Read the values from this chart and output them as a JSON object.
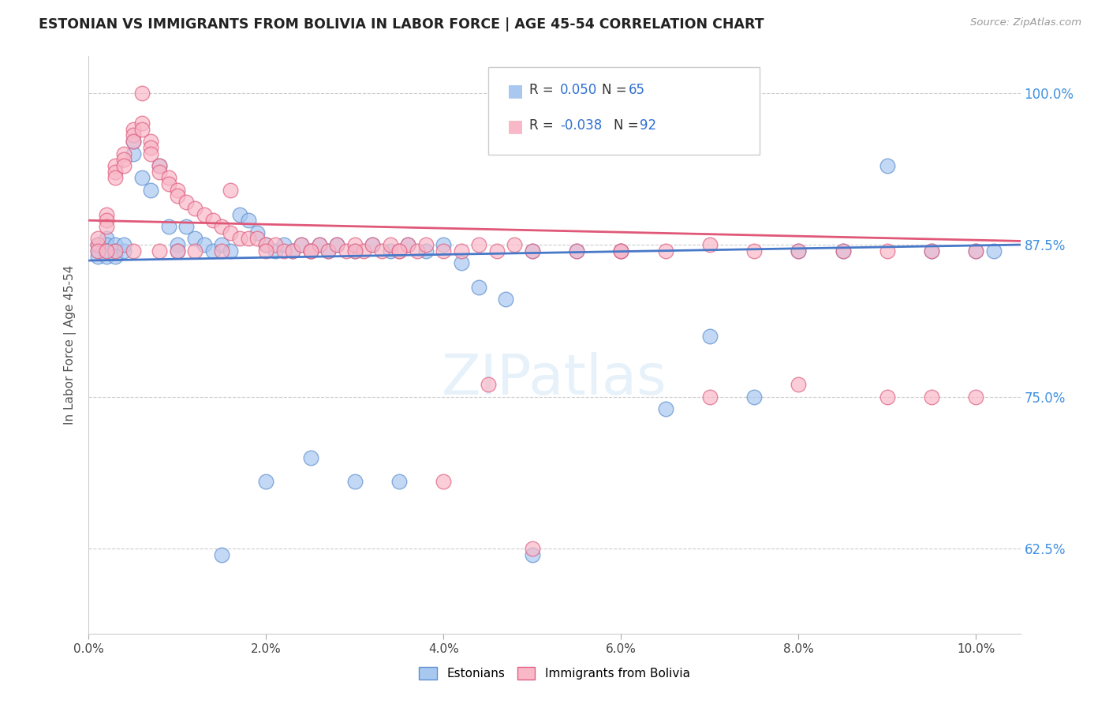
{
  "title": "ESTONIAN VS IMMIGRANTS FROM BOLIVIA IN LABOR FORCE | AGE 45-54 CORRELATION CHART",
  "source": "Source: ZipAtlas.com",
  "ylabel": "In Labor Force | Age 45-54",
  "xlim": [
    0.0,
    0.105
  ],
  "ylim": [
    0.555,
    1.03
  ],
  "yticks": [
    0.625,
    0.75,
    0.875,
    1.0
  ],
  "ytick_labels": [
    "62.5%",
    "75.0%",
    "87.5%",
    "100.0%"
  ],
  "xticks": [
    0.0,
    0.02,
    0.04,
    0.06,
    0.08,
    0.1
  ],
  "xtick_labels": [
    "0.0%",
    "2.0%",
    "4.0%",
    "6.0%",
    "8.0%",
    "10.0%"
  ],
  "color_estonian_fill": "#A8C8F0",
  "color_estonian_edge": "#6090D0",
  "color_bolivia_fill": "#F8B8C8",
  "color_bolivia_edge": "#E06080",
  "color_line_estonian": "#4878C8",
  "color_line_bolivia": "#E05878",
  "color_right_axis": "#4090E0",
  "legend_blue": "#3070D0",
  "estonian_x": [
    0.001,
    0.001,
    0.001,
    0.002,
    0.002,
    0.002,
    0.002,
    0.003,
    0.003,
    0.003,
    0.004,
    0.004,
    0.005,
    0.005,
    0.006,
    0.007,
    0.008,
    0.009,
    0.01,
    0.01,
    0.011,
    0.012,
    0.013,
    0.014,
    0.015,
    0.016,
    0.017,
    0.018,
    0.019,
    0.02,
    0.021,
    0.022,
    0.023,
    0.024,
    0.025,
    0.026,
    0.027,
    0.028,
    0.03,
    0.032,
    0.034,
    0.036,
    0.038,
    0.04,
    0.042,
    0.044,
    0.047,
    0.05,
    0.055,
    0.06,
    0.065,
    0.07,
    0.075,
    0.08,
    0.085,
    0.09,
    0.095,
    0.1,
    0.102,
    0.05,
    0.03,
    0.035,
    0.02,
    0.025,
    0.015
  ],
  "estonian_y": [
    0.875,
    0.87,
    0.865,
    0.88,
    0.875,
    0.87,
    0.865,
    0.875,
    0.87,
    0.865,
    0.87,
    0.875,
    0.95,
    0.96,
    0.93,
    0.92,
    0.94,
    0.89,
    0.875,
    0.87,
    0.89,
    0.88,
    0.875,
    0.87,
    0.875,
    0.87,
    0.9,
    0.895,
    0.885,
    0.875,
    0.87,
    0.875,
    0.87,
    0.875,
    0.87,
    0.875,
    0.87,
    0.875,
    0.87,
    0.875,
    0.87,
    0.875,
    0.87,
    0.875,
    0.86,
    0.84,
    0.83,
    0.87,
    0.87,
    0.87,
    0.74,
    0.8,
    0.75,
    0.87,
    0.87,
    0.94,
    0.87,
    0.87,
    0.87,
    0.62,
    0.68,
    0.68,
    0.68,
    0.7,
    0.62
  ],
  "bolivia_x": [
    0.001,
    0.001,
    0.001,
    0.002,
    0.002,
    0.002,
    0.003,
    0.003,
    0.003,
    0.004,
    0.004,
    0.004,
    0.005,
    0.005,
    0.005,
    0.006,
    0.006,
    0.006,
    0.007,
    0.007,
    0.007,
    0.008,
    0.008,
    0.009,
    0.009,
    0.01,
    0.01,
    0.011,
    0.012,
    0.013,
    0.014,
    0.015,
    0.016,
    0.017,
    0.018,
    0.019,
    0.02,
    0.021,
    0.022,
    0.023,
    0.024,
    0.025,
    0.026,
    0.027,
    0.028,
    0.029,
    0.03,
    0.031,
    0.032,
    0.033,
    0.034,
    0.035,
    0.036,
    0.037,
    0.038,
    0.04,
    0.042,
    0.044,
    0.046,
    0.048,
    0.05,
    0.055,
    0.06,
    0.065,
    0.07,
    0.075,
    0.08,
    0.085,
    0.09,
    0.095,
    0.1,
    0.04,
    0.045,
    0.05,
    0.06,
    0.07,
    0.08,
    0.09,
    0.095,
    0.1,
    0.03,
    0.035,
    0.025,
    0.02,
    0.015,
    0.01,
    0.005,
    0.003,
    0.002,
    0.008,
    0.012,
    0.016
  ],
  "bolivia_y": [
    0.875,
    0.88,
    0.87,
    0.9,
    0.895,
    0.89,
    0.94,
    0.935,
    0.93,
    0.95,
    0.945,
    0.94,
    0.97,
    0.965,
    0.96,
    1.0,
    0.975,
    0.97,
    0.96,
    0.955,
    0.95,
    0.94,
    0.935,
    0.93,
    0.925,
    0.92,
    0.915,
    0.91,
    0.905,
    0.9,
    0.895,
    0.89,
    0.885,
    0.88,
    0.88,
    0.88,
    0.875,
    0.875,
    0.87,
    0.87,
    0.875,
    0.87,
    0.875,
    0.87,
    0.875,
    0.87,
    0.875,
    0.87,
    0.875,
    0.87,
    0.875,
    0.87,
    0.875,
    0.87,
    0.875,
    0.87,
    0.87,
    0.875,
    0.87,
    0.875,
    0.87,
    0.87,
    0.87,
    0.87,
    0.875,
    0.87,
    0.87,
    0.87,
    0.87,
    0.87,
    0.87,
    0.68,
    0.76,
    0.625,
    0.87,
    0.75,
    0.76,
    0.75,
    0.75,
    0.75,
    0.87,
    0.87,
    0.87,
    0.87,
    0.87,
    0.87,
    0.87,
    0.87,
    0.87,
    0.87,
    0.87,
    0.92
  ],
  "trend_est_x0": 0.0,
  "trend_est_x1": 0.105,
  "trend_est_y0": 0.862,
  "trend_est_y1": 0.875,
  "trend_bol_x0": 0.0,
  "trend_bol_x1": 0.105,
  "trend_bol_y0": 0.895,
  "trend_bol_y1": 0.878
}
